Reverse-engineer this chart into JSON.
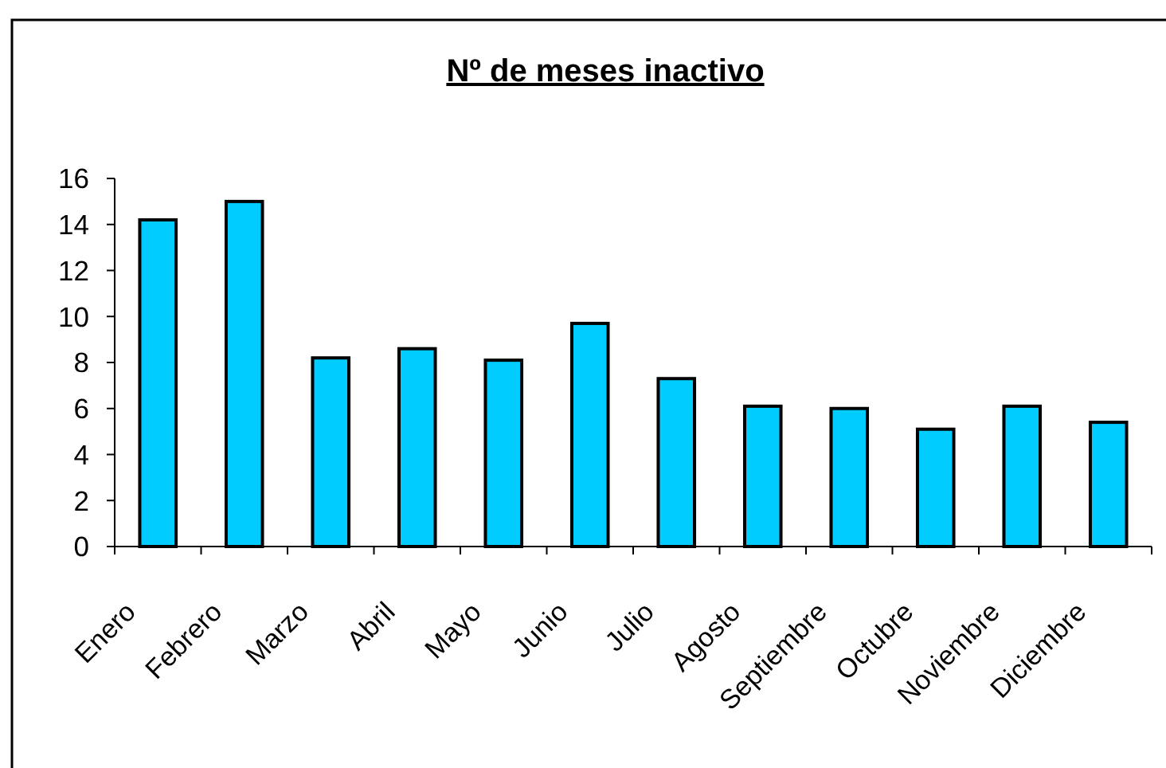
{
  "chart_data": {
    "type": "bar",
    "title": "Nº de meses inactivo",
    "categories": [
      "Enero",
      "Febrero",
      "Marzo",
      "Abril",
      "Mayo",
      "Junio",
      "Julio",
      "Agosto",
      "Septiembre",
      "Octubre",
      "Noviembre",
      "Diciembre"
    ],
    "values": [
      14.2,
      15.0,
      8.2,
      8.6,
      8.1,
      9.7,
      7.3,
      6.1,
      6.0,
      5.1,
      6.1,
      5.4
    ],
    "color": "#00ccff",
    "ylim": [
      0,
      16
    ],
    "yticks": [
      0,
      2,
      4,
      6,
      8,
      10,
      12,
      14,
      16
    ]
  }
}
